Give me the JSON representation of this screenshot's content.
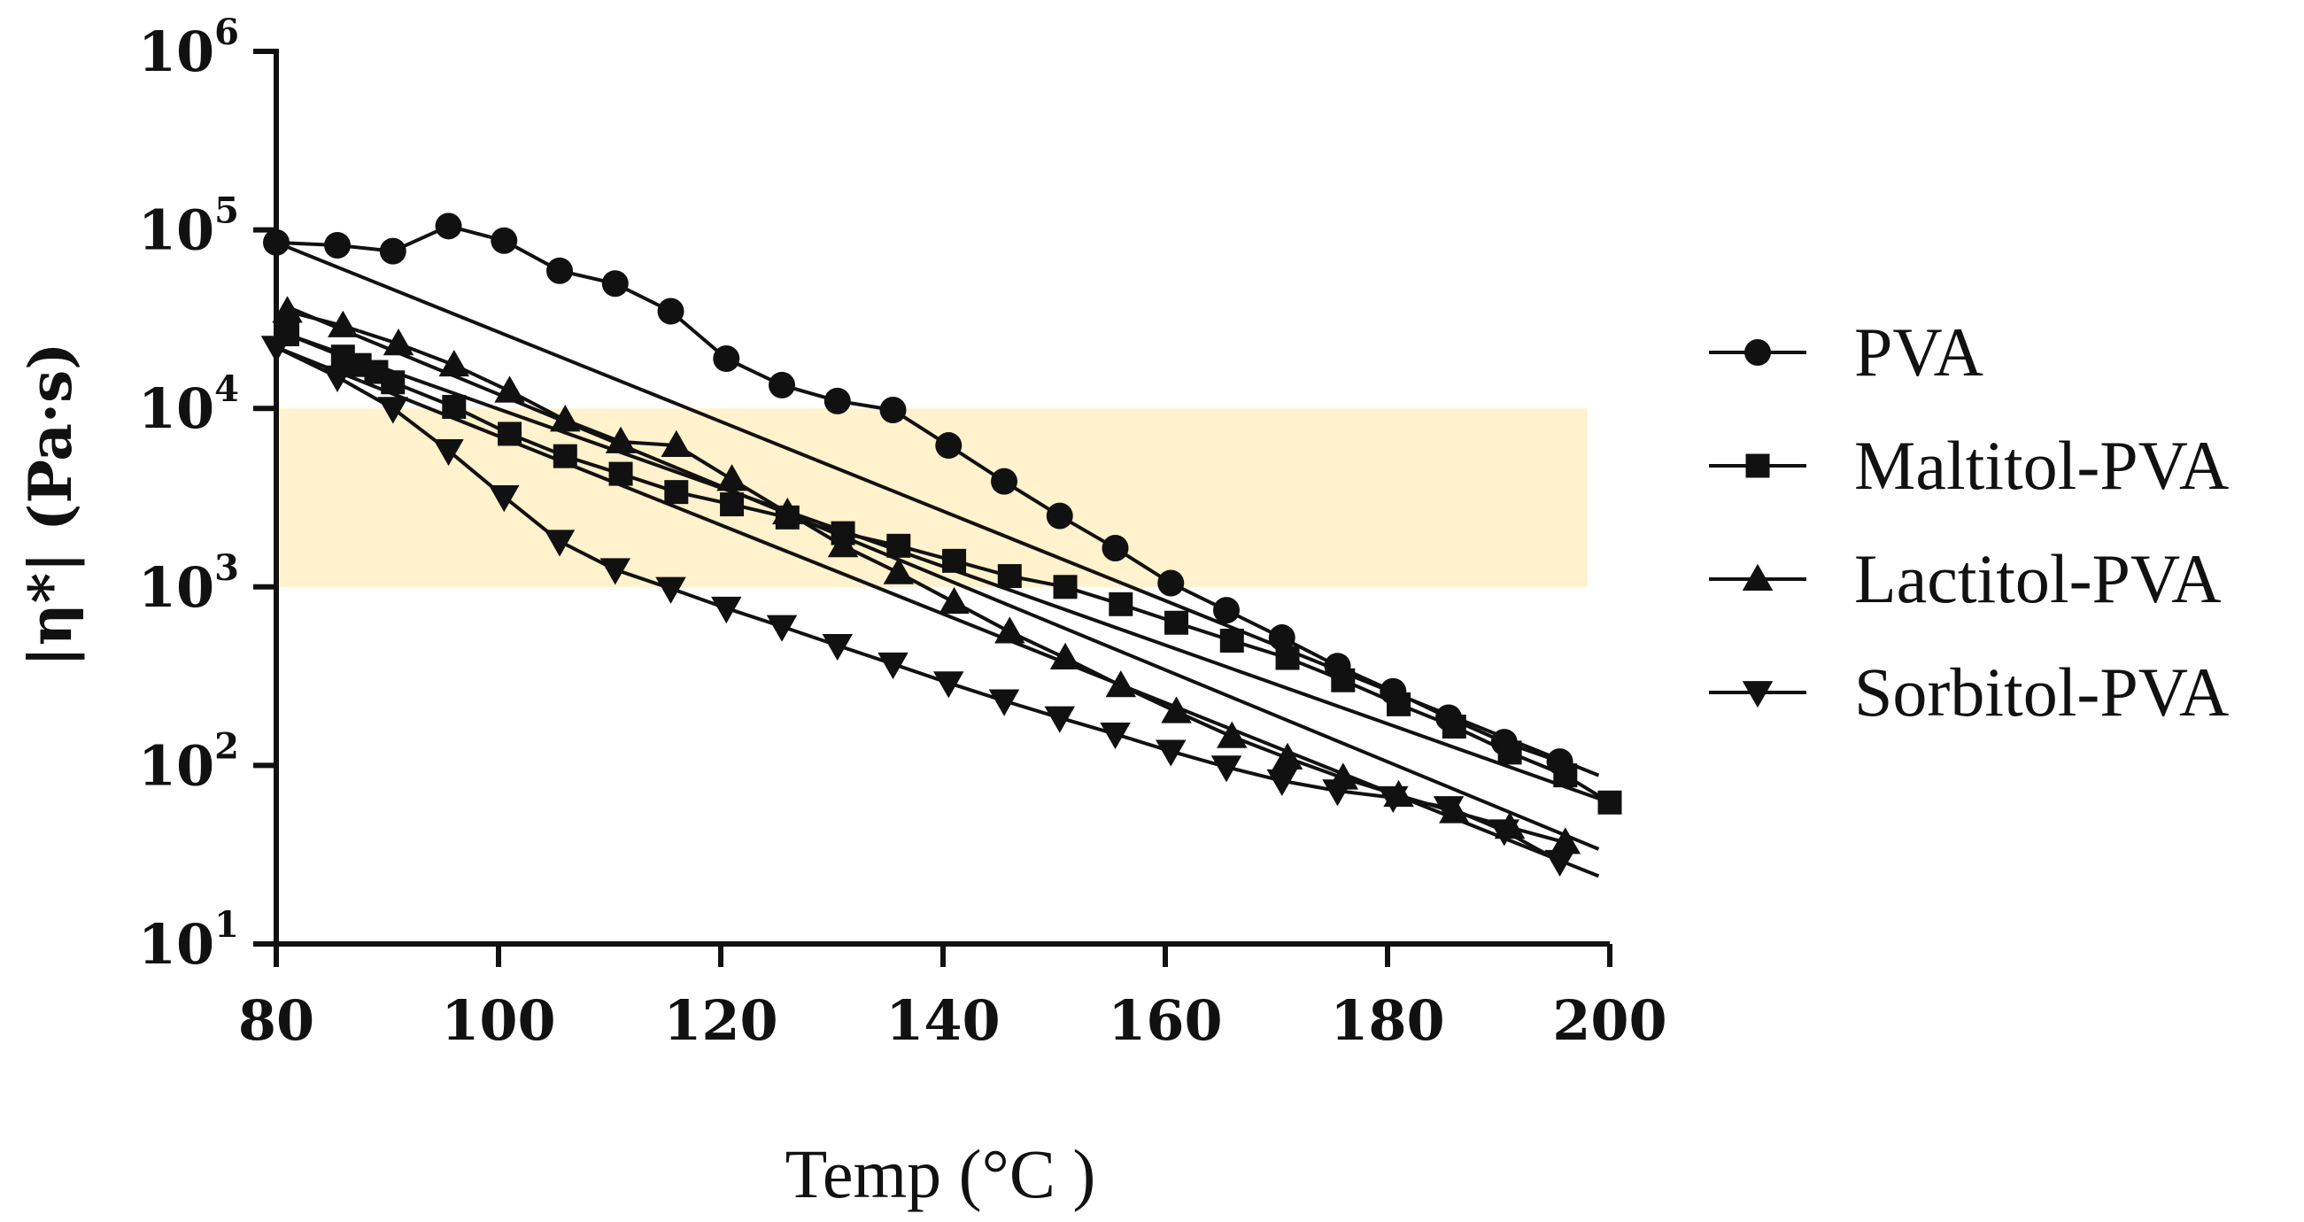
{
  "chart_data": {
    "type": "line",
    "title": "",
    "xlabel": "Temp (°C )",
    "ylabel": "|η*|  (Pa·s)",
    "x_ticks": [
      "80",
      "100",
      "120",
      "140",
      "160",
      "180",
      "200"
    ],
    "y_ticks": [
      {
        "base": "10",
        "exp": "1"
      },
      {
        "base": "10",
        "exp": "2"
      },
      {
        "base": "10",
        "exp": "3"
      },
      {
        "base": "10",
        "exp": "4"
      },
      {
        "base": "10",
        "exp": "5"
      },
      {
        "base": "10",
        "exp": "6"
      }
    ],
    "xlim": [
      80,
      200
    ],
    "ylim_log10": [
      1,
      6
    ],
    "y_scale": "log",
    "shaded_band": {
      "x": [
        80,
        198
      ],
      "y": [
        1000,
        10000
      ],
      "color": "#fff2cc"
    },
    "legend_position": "right",
    "series": [
      {
        "name": "PVA",
        "marker": "circle",
        "x": [
          80,
          85.5,
          90.5,
          95.5,
          100.5,
          105.5,
          110.5,
          115.5,
          120.5,
          125.5,
          130.5,
          135.5,
          140.5,
          145.5,
          150.5,
          155.5,
          160.5,
          165.5,
          170.5,
          175.5,
          180.5,
          185.5,
          190.5,
          195.5
        ],
        "y": [
          85000,
          82000,
          76000,
          105000,
          87000,
          59000,
          50000,
          35000,
          19000,
          13500,
          11000,
          9800,
          6200,
          3900,
          2500,
          1650,
          1050,
          740,
          520,
          360,
          260,
          185,
          135,
          105
        ],
        "fit": {
          "x": [
            80,
            199
          ],
          "y": [
            85000,
            88
          ]
        }
      },
      {
        "name": "Maltitol-PVA",
        "marker": "square",
        "x": [
          81,
          86,
          87.5,
          89,
          90.5,
          96,
          101,
          106,
          111,
          116,
          121,
          126,
          131,
          136,
          141,
          146,
          151,
          156,
          161,
          166,
          171,
          176,
          181,
          186,
          191,
          196,
          200
        ],
        "y": [
          26000,
          19500,
          17500,
          16000,
          14000,
          10200,
          7200,
          5400,
          4300,
          3400,
          2900,
          2450,
          2000,
          1700,
          1400,
          1150,
          1000,
          800,
          630,
          500,
          400,
          300,
          220,
          165,
          118,
          88,
          62
        ],
        "fit": {
          "x": [
            81,
            200
          ],
          "y": [
            26000,
            62
          ]
        }
      },
      {
        "name": "Lactitol-PVA",
        "marker": "triangle-up",
        "x": [
          81,
          86,
          91,
          96,
          101,
          106,
          111,
          116,
          121,
          126,
          131,
          136,
          141,
          146,
          151,
          156,
          161,
          166,
          171,
          176,
          181,
          186,
          191,
          196
        ],
        "y": [
          35000,
          29000,
          23000,
          17500,
          12500,
          8600,
          6500,
          6200,
          4000,
          2600,
          1700,
          1200,
          820,
          560,
          400,
          280,
          200,
          145,
          110,
          85,
          68,
          55,
          45,
          37
        ],
        "fit": {
          "x": [
            81,
            199
          ],
          "y": [
            37000,
            34
          ]
        }
      },
      {
        "name": "Sorbitol-PVA",
        "marker": "triangle-down",
        "x": [
          80,
          85.5,
          90.5,
          95.5,
          100.5,
          105.5,
          110.5,
          115.5,
          120.5,
          125.5,
          130.5,
          135.5,
          140.5,
          145.5,
          150.5,
          155.5,
          160.5,
          165.5,
          170.5,
          175.5,
          180.5,
          185.5,
          190.5,
          195.5
        ],
        "y": [
          22000,
          15000,
          10000,
          5800,
          3200,
          1800,
          1250,
          980,
          760,
          600,
          470,
          370,
          290,
          230,
          185,
          150,
          120,
          98,
          82,
          72,
          66,
          58,
          43,
          29
        ],
        "fit": {
          "x": [
            80,
            199
          ],
          "y": [
            22000,
            24
          ]
        }
      }
    ]
  }
}
